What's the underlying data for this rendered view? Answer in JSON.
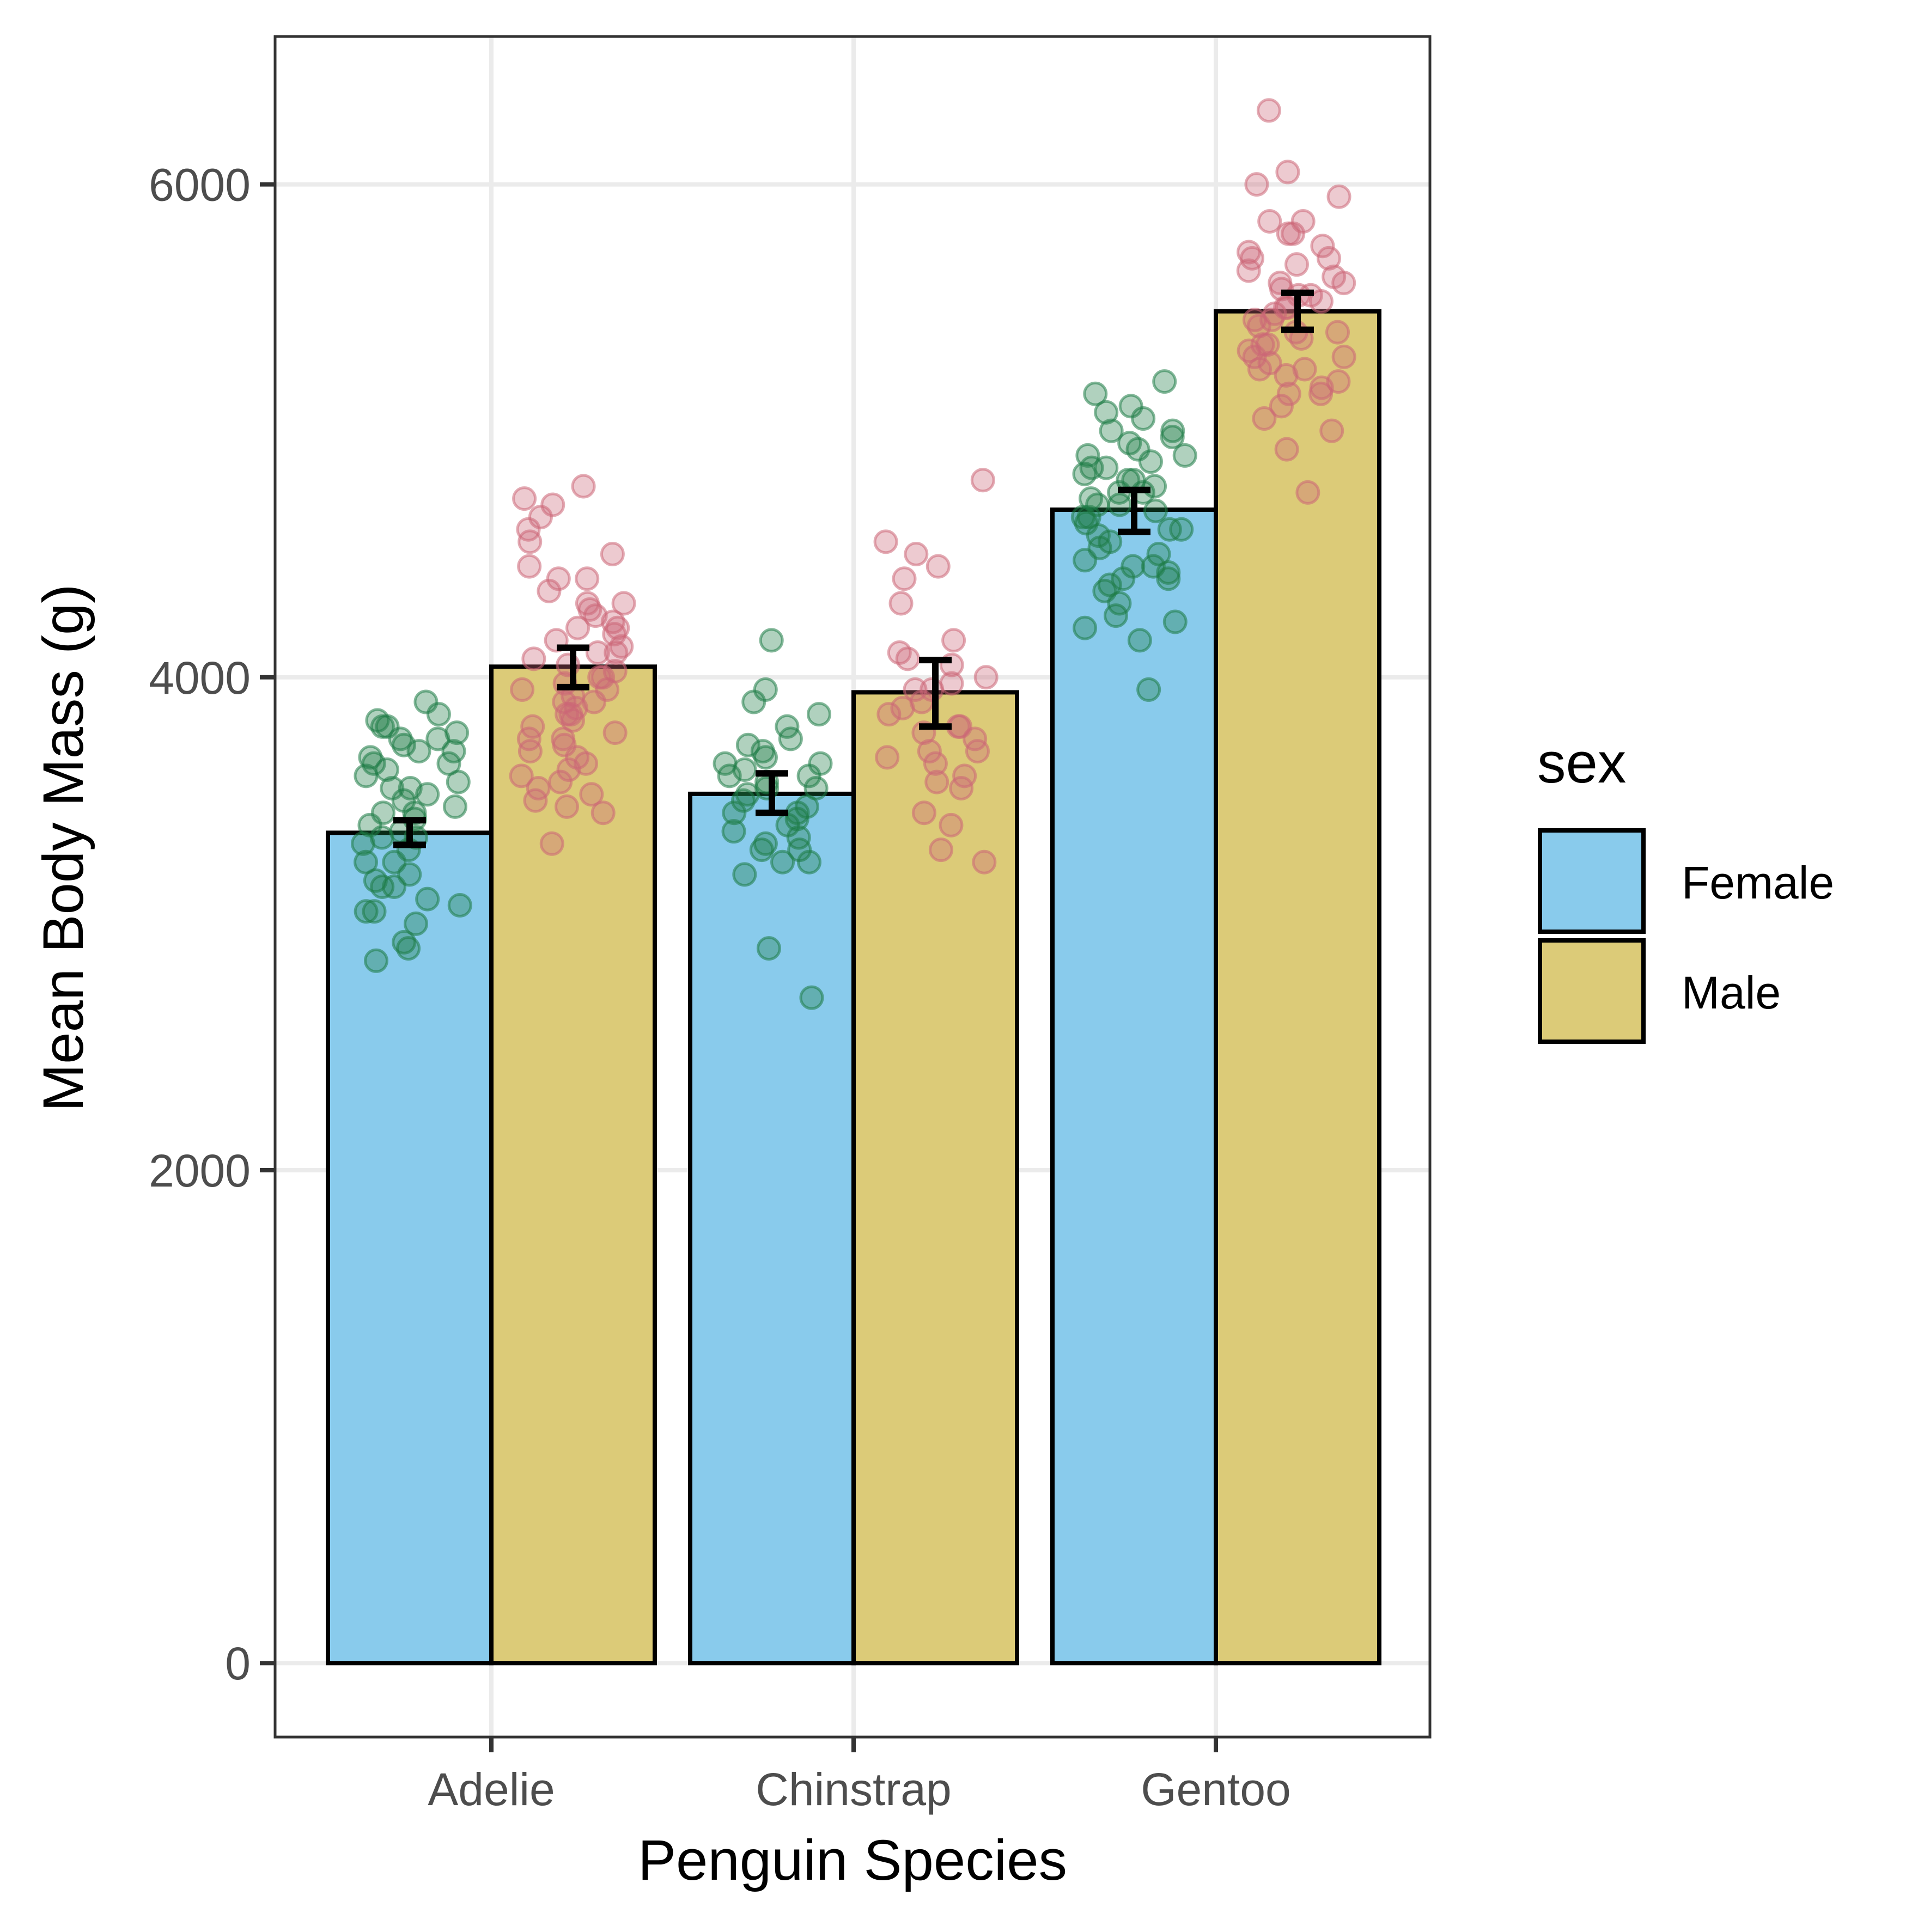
{
  "chart_data": {
    "type": "bar",
    "xlabel": "Penguin Species",
    "ylabel": "Mean Body Mass (g)",
    "categories": [
      "Adelie",
      "Chinstrap",
      "Gentoo"
    ],
    "ylim": [
      -300,
      6600
    ],
    "yticks": [
      0,
      2000,
      4000,
      6000
    ],
    "grid": true,
    "legend": {
      "title": "sex",
      "position": "right"
    },
    "series": [
      {
        "name": "Female",
        "color": "#89CBEC",
        "values": [
          3369,
          3527,
          4680
        ],
        "errors": [
          [
            3320,
            3420
          ],
          [
            3450,
            3610
          ],
          [
            4590,
            4760
          ]
        ],
        "points_color": "#1E7B45",
        "points": [
          [
            3300,
            3350,
            3400,
            3450,
            3500,
            3550,
            3600,
            3650,
            3700,
            3750,
            3800,
            3850,
            3900,
            3250,
            3200,
            3150,
            3100,
            3050,
            3000,
            2900,
            2850,
            3325,
            3475,
            3575,
            3675,
            3725,
            3775,
            3825,
            3375,
            3425,
            3525,
            3625,
            3175,
            3075,
            2925,
            3350,
            3450,
            3550,
            3650,
            3750,
            3250,
            3150,
            3050,
            3700,
            3800
          ],
          [
            2700,
            2900,
            3200,
            3250,
            3300,
            3350,
            3400,
            3450,
            3500,
            3550,
            3600,
            3650,
            3700,
            3750,
            3800,
            3850,
            3900,
            3950,
            4150,
            3325,
            3475,
            3575,
            3675,
            3525,
            3625,
            3425,
            3375,
            3725,
            3300,
            3600,
            3650,
            3550,
            3250,
            3450
          ],
          [
            3950,
            4150,
            4200,
            4250,
            4300,
            4350,
            4400,
            4450,
            4500,
            4550,
            4600,
            4650,
            4700,
            4750,
            4800,
            4850,
            4900,
            4950,
            5000,
            5050,
            5100,
            5150,
            5200,
            4225,
            4375,
            4475,
            4575,
            4675,
            4775,
            4875,
            4975,
            5075,
            4425,
            4525,
            4625,
            4725,
            4825,
            4925,
            4400,
            4600,
            4700,
            4800,
            4900,
            5000,
            4450,
            4650,
            4750,
            4850
          ]
        ]
      },
      {
        "name": "Male",
        "color": "#DCCB78",
        "values": [
          4043,
          3939,
          5485
        ],
        "errors": [
          [
            3960,
            4120
          ],
          [
            3800,
            4070
          ],
          [
            5410,
            5560
          ]
        ],
        "points_color": "#CC6677",
        "points": [
          [
            3325,
            3450,
            3500,
            3550,
            3600,
            3650,
            3700,
            3750,
            3800,
            3850,
            3900,
            3950,
            4000,
            4050,
            4100,
            4150,
            4200,
            4250,
            4300,
            4350,
            4400,
            4450,
            4500,
            4550,
            4600,
            4650,
            4700,
            4725,
            4775,
            3475,
            3575,
            3675,
            3775,
            3875,
            3975,
            4075,
            4175,
            4275,
            3925,
            4025,
            3525,
            3625,
            4125,
            4225,
            3725,
            3825,
            3900,
            4000,
            4100,
            4200,
            4300,
            4400,
            3950,
            3850,
            3750
          ],
          [
            3250,
            3300,
            3400,
            3450,
            3550,
            3600,
            3650,
            3700,
            3750,
            3800,
            3850,
            3900,
            3950,
            4000,
            4050,
            4100,
            4150,
            4300,
            4400,
            4450,
            4500,
            4550,
            4800,
            3575,
            3675,
            3775,
            3875,
            3975,
            4075,
            3800,
            3950,
            3700
          ],
          [
            4750,
            4925,
            5000,
            5050,
            5100,
            5150,
            5200,
            5250,
            5300,
            5350,
            5400,
            5450,
            5500,
            5550,
            5600,
            5650,
            5700,
            5750,
            5800,
            5850,
            5950,
            6000,
            6050,
            6300,
            5225,
            5325,
            5425,
            5525,
            5625,
            5725,
            5375,
            5475,
            5575,
            5275,
            5175,
            5675,
            5850,
            5550,
            5400,
            5300,
            5500,
            5600,
            5700,
            5800,
            5450,
            5350,
            5250,
            5150
          ]
        ]
      }
    ]
  }
}
